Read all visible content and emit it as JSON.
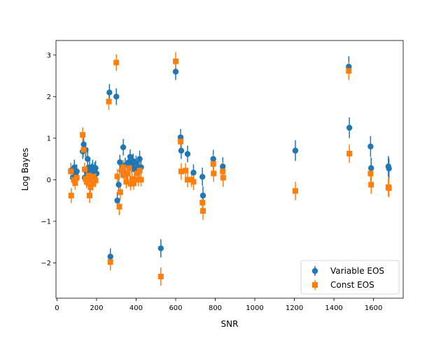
{
  "chart_data": {
    "type": "scatter",
    "title": "",
    "xlabel": "SNR",
    "ylabel": "Log Bayes",
    "xlim": [
      -5,
      1750
    ],
    "ylim": [
      -2.85,
      3.35
    ],
    "xticks": [
      0,
      200,
      400,
      600,
      800,
      1000,
      1200,
      1400,
      1600
    ],
    "yticks": [
      -2,
      -1,
      0,
      1,
      2,
      3
    ],
    "xtick_labels": [
      "0",
      "200",
      "400",
      "600",
      "800",
      "1000",
      "1200",
      "1400",
      "1600"
    ],
    "ytick_labels": [
      "−2",
      "−1",
      "0",
      "1",
      "2",
      "3"
    ],
    "grid": false,
    "legend_position": "lower-right",
    "series": [
      {
        "name": "Variable EOS",
        "color": "#1f77b4",
        "marker": "circle",
        "points": [
          [
            70,
            0.22,
            0.18
          ],
          [
            80,
            0.05,
            0.15
          ],
          [
            88,
            0.3,
            0.18
          ],
          [
            95,
            0.15,
            0.17
          ],
          [
            100,
            0.2,
            0.17
          ],
          [
            130,
            0.68,
            0.18
          ],
          [
            135,
            0.85,
            0.18
          ],
          [
            140,
            0.05,
            0.15
          ],
          [
            145,
            0.72,
            0.18
          ],
          [
            150,
            0.18,
            0.17
          ],
          [
            155,
            0.5,
            0.18
          ],
          [
            160,
            0.12,
            0.17
          ],
          [
            165,
            0.3,
            0.17
          ],
          [
            170,
            0.08,
            0.16
          ],
          [
            175,
            0.22,
            0.17
          ],
          [
            180,
            0.3,
            0.18
          ],
          [
            185,
            0.1,
            0.17
          ],
          [
            190,
            0.25,
            0.17
          ],
          [
            195,
            0.28,
            0.18
          ],
          [
            200,
            0.15,
            0.17
          ],
          [
            265,
            2.1,
            0.2
          ],
          [
            270,
            -1.85,
            0.2
          ],
          [
            300,
            2.0,
            0.2
          ],
          [
            305,
            -0.5,
            0.2
          ],
          [
            312,
            -0.12,
            0.18
          ],
          [
            318,
            0.42,
            0.18
          ],
          [
            325,
            0.22,
            0.17
          ],
          [
            335,
            0.78,
            0.2
          ],
          [
            345,
            0.35,
            0.18
          ],
          [
            355,
            0.15,
            0.17
          ],
          [
            362,
            0.42,
            0.18
          ],
          [
            370,
            0.55,
            0.18
          ],
          [
            378,
            0.35,
            0.18
          ],
          [
            385,
            0.45,
            0.18
          ],
          [
            392,
            0.25,
            0.17
          ],
          [
            400,
            0.4,
            0.18
          ],
          [
            410,
            0.3,
            0.18
          ],
          [
            418,
            0.5,
            0.2
          ],
          [
            425,
            0.3,
            0.18
          ],
          [
            525,
            -1.65,
            0.22
          ],
          [
            600,
            2.6,
            0.2
          ],
          [
            625,
            1.02,
            0.2
          ],
          [
            628,
            0.7,
            0.2
          ],
          [
            660,
            0.62,
            0.2
          ],
          [
            690,
            0.17,
            0.2
          ],
          [
            735,
            0.07,
            0.22
          ],
          [
            738,
            -0.38,
            0.22
          ],
          [
            790,
            0.5,
            0.22
          ],
          [
            838,
            0.32,
            0.22
          ],
          [
            1205,
            0.7,
            0.25
          ],
          [
            1475,
            2.72,
            0.25
          ],
          [
            1478,
            1.25,
            0.25
          ],
          [
            1585,
            0.8,
            0.25
          ],
          [
            1588,
            0.28,
            0.25
          ],
          [
            1675,
            0.32,
            0.25
          ],
          [
            1678,
            0.27,
            0.25
          ]
        ]
      },
      {
        "name": "Const EOS",
        "color": "#ff7f0e",
        "marker": "square",
        "points": [
          [
            70,
            0.2,
            0.18
          ],
          [
            72,
            -0.38,
            0.18
          ],
          [
            85,
            0.0,
            0.16
          ],
          [
            92,
            -0.08,
            0.16
          ],
          [
            100,
            0.05,
            0.16
          ],
          [
            130,
            1.08,
            0.18
          ],
          [
            135,
            0.72,
            0.18
          ],
          [
            140,
            0.25,
            0.16
          ],
          [
            145,
            0.02,
            0.16
          ],
          [
            150,
            -0.05,
            0.16
          ],
          [
            155,
            0.0,
            0.16
          ],
          [
            160,
            0.1,
            0.16
          ],
          [
            165,
            -0.38,
            0.18
          ],
          [
            170,
            -0.18,
            0.18
          ],
          [
            175,
            0.05,
            0.16
          ],
          [
            180,
            -0.1,
            0.16
          ],
          [
            185,
            0.08,
            0.16
          ],
          [
            190,
            0.0,
            0.16
          ],
          [
            195,
            -0.02,
            0.16
          ],
          [
            262,
            1.88,
            0.2
          ],
          [
            270,
            -1.98,
            0.2
          ],
          [
            300,
            2.82,
            0.2
          ],
          [
            305,
            0.08,
            0.18
          ],
          [
            315,
            -0.65,
            0.2
          ],
          [
            320,
            -0.3,
            0.18
          ],
          [
            328,
            0.22,
            0.17
          ],
          [
            335,
            0.3,
            0.18
          ],
          [
            342,
            0.1,
            0.16
          ],
          [
            350,
            -0.05,
            0.16
          ],
          [
            358,
            0.15,
            0.17
          ],
          [
            365,
            0.28,
            0.18
          ],
          [
            372,
            -0.1,
            0.16
          ],
          [
            380,
            0.02,
            0.16
          ],
          [
            388,
            -0.08,
            0.16
          ],
          [
            395,
            0.0,
            0.16
          ],
          [
            405,
            0.15,
            0.17
          ],
          [
            412,
            0.0,
            0.16
          ],
          [
            418,
            0.22,
            0.17
          ],
          [
            425,
            0.0,
            0.16
          ],
          [
            525,
            -2.33,
            0.22
          ],
          [
            600,
            2.85,
            0.22
          ],
          [
            625,
            0.92,
            0.2
          ],
          [
            628,
            0.2,
            0.2
          ],
          [
            650,
            0.22,
            0.18
          ],
          [
            660,
            0.0,
            0.18
          ],
          [
            680,
            0.0,
            0.18
          ],
          [
            690,
            -0.05,
            0.2
          ],
          [
            735,
            -0.55,
            0.22
          ],
          [
            738,
            -0.75,
            0.22
          ],
          [
            790,
            0.38,
            0.22
          ],
          [
            792,
            0.15,
            0.2
          ],
          [
            838,
            0.2,
            0.22
          ],
          [
            840,
            0.05,
            0.22
          ],
          [
            1205,
            -0.27,
            0.22
          ],
          [
            1475,
            2.62,
            0.22
          ],
          [
            1478,
            0.63,
            0.22
          ],
          [
            1585,
            0.15,
            0.22
          ],
          [
            1588,
            -0.12,
            0.22
          ],
          [
            1675,
            -0.18,
            0.22
          ],
          [
            1678,
            -0.2,
            0.22
          ]
        ]
      }
    ]
  }
}
